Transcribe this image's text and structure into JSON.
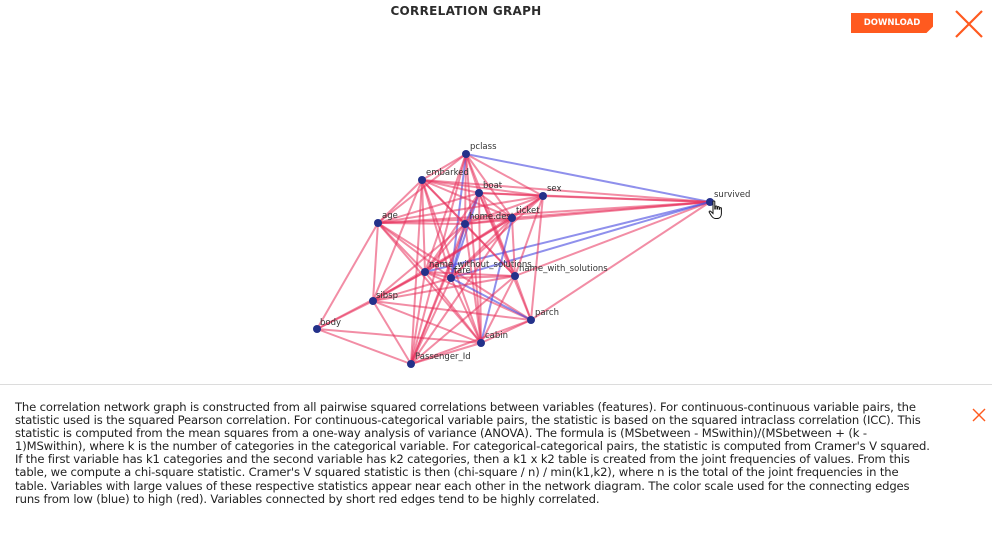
{
  "header": {
    "title": "CORRELATION GRAPH",
    "download_label": "DOWNLOAD"
  },
  "icons": {
    "close": "close-icon",
    "cursor": "hand-pointer-icon"
  },
  "colors": {
    "accent": "#ff5a1f",
    "node": "#24318a",
    "edge_high": "#e8305b",
    "edge_low": "#4a4ce0"
  },
  "graph": {
    "nodes": [
      {
        "id": "pclass",
        "label": "pclass"
      },
      {
        "id": "embarked",
        "label": "embarked"
      },
      {
        "id": "boat",
        "label": "boat"
      },
      {
        "id": "sex",
        "label": "sex"
      },
      {
        "id": "age",
        "label": "age"
      },
      {
        "id": "home_dest",
        "label": "home.dest"
      },
      {
        "id": "ticket",
        "label": "ticket"
      },
      {
        "id": "survived",
        "label": "survived"
      },
      {
        "id": "name_without_solutions",
        "label": "name_without_solutions"
      },
      {
        "id": "fare",
        "label": "fare"
      },
      {
        "id": "name_with_solutions",
        "label": "name_with_solutions"
      },
      {
        "id": "sibsp",
        "label": "sibsp"
      },
      {
        "id": "body",
        "label": "body"
      },
      {
        "id": "parch",
        "label": "parch"
      },
      {
        "id": "cabin",
        "label": "cabin"
      },
      {
        "id": "passenger_id",
        "label": "Passenger_Id"
      }
    ],
    "edges": [
      [
        "survived",
        "pclass",
        "low"
      ],
      [
        "survived",
        "embarked",
        "high"
      ],
      [
        "survived",
        "boat",
        "high"
      ],
      [
        "survived",
        "sex",
        "high"
      ],
      [
        "survived",
        "age",
        "high"
      ],
      [
        "survived",
        "home_dest",
        "high"
      ],
      [
        "survived",
        "ticket",
        "high"
      ],
      [
        "survived",
        "fare",
        "low"
      ],
      [
        "survived",
        "name_with_solutions",
        "high"
      ],
      [
        "survived",
        "parch",
        "high"
      ],
      [
        "survived",
        "name_without_solutions",
        "low"
      ],
      [
        "pclass",
        "embarked",
        "high"
      ],
      [
        "pclass",
        "boat",
        "high"
      ],
      [
        "pclass",
        "sex",
        "high"
      ],
      [
        "pclass",
        "age",
        "high"
      ],
      [
        "pclass",
        "home_dest",
        "high"
      ],
      [
        "pclass",
        "ticket",
        "high"
      ],
      [
        "pclass",
        "fare",
        "low"
      ],
      [
        "pclass",
        "name_without_solutions",
        "high"
      ],
      [
        "pclass",
        "cabin",
        "high"
      ],
      [
        "pclass",
        "passenger_id",
        "high"
      ],
      [
        "pclass",
        "name_with_solutions",
        "high"
      ],
      [
        "embarked",
        "boat",
        "high"
      ],
      [
        "embarked",
        "sex",
        "high"
      ],
      [
        "embarked",
        "age",
        "high"
      ],
      [
        "embarked",
        "home_dest",
        "high"
      ],
      [
        "embarked",
        "ticket",
        "high"
      ],
      [
        "embarked",
        "fare",
        "high"
      ],
      [
        "embarked",
        "name_without_solutions",
        "high"
      ],
      [
        "embarked",
        "name_with_solutions",
        "high"
      ],
      [
        "embarked",
        "sibsp",
        "high"
      ],
      [
        "embarked",
        "cabin",
        "high"
      ],
      [
        "embarked",
        "passenger_id",
        "high"
      ],
      [
        "boat",
        "sex",
        "high"
      ],
      [
        "boat",
        "age",
        "high"
      ],
      [
        "boat",
        "home_dest",
        "low"
      ],
      [
        "boat",
        "ticket",
        "high"
      ],
      [
        "boat",
        "fare",
        "low"
      ],
      [
        "boat",
        "name_without_solutions",
        "high"
      ],
      [
        "boat",
        "name_with_solutions",
        "high"
      ],
      [
        "boat",
        "cabin",
        "high"
      ],
      [
        "boat",
        "passenger_id",
        "high"
      ],
      [
        "boat",
        "parch",
        "high"
      ],
      [
        "sex",
        "age",
        "high"
      ],
      [
        "sex",
        "home_dest",
        "high"
      ],
      [
        "sex",
        "ticket",
        "high"
      ],
      [
        "sex",
        "name_without_solutions",
        "high"
      ],
      [
        "sex",
        "name_with_solutions",
        "high"
      ],
      [
        "sex",
        "parch",
        "high"
      ],
      [
        "sex",
        "fare",
        "high"
      ],
      [
        "age",
        "home_dest",
        "high"
      ],
      [
        "age",
        "ticket",
        "high"
      ],
      [
        "age",
        "sibsp",
        "high"
      ],
      [
        "age",
        "parch",
        "high"
      ],
      [
        "age",
        "body",
        "high"
      ],
      [
        "age",
        "name_without_solutions",
        "high"
      ],
      [
        "age",
        "fare",
        "high"
      ],
      [
        "age",
        "cabin",
        "high"
      ],
      [
        "home_dest",
        "ticket",
        "high"
      ],
      [
        "home_dest",
        "fare",
        "low"
      ],
      [
        "home_dest",
        "name_without_solutions",
        "high"
      ],
      [
        "home_dest",
        "name_with_solutions",
        "high"
      ],
      [
        "home_dest",
        "cabin",
        "high"
      ],
      [
        "home_dest",
        "passenger_id",
        "high"
      ],
      [
        "home_dest",
        "sibsp",
        "high"
      ],
      [
        "ticket",
        "fare",
        "high"
      ],
      [
        "ticket",
        "name_with_solutions",
        "high"
      ],
      [
        "ticket",
        "name_without_solutions",
        "high"
      ],
      [
        "ticket",
        "passenger_id",
        "high"
      ],
      [
        "ticket",
        "cabin",
        "low"
      ],
      [
        "ticket",
        "sibsp",
        "high"
      ],
      [
        "name_without_solutions",
        "fare",
        "high"
      ],
      [
        "name_without_solutions",
        "name_with_solutions",
        "high"
      ],
      [
        "name_without_solutions",
        "sibsp",
        "high"
      ],
      [
        "name_without_solutions",
        "parch",
        "high"
      ],
      [
        "name_without_solutions",
        "cabin",
        "high"
      ],
      [
        "name_without_solutions",
        "passenger_id",
        "high"
      ],
      [
        "name_without_solutions",
        "body",
        "high"
      ],
      [
        "fare",
        "name_with_solutions",
        "high"
      ],
      [
        "fare",
        "sibsp",
        "high"
      ],
      [
        "fare",
        "parch",
        "low"
      ],
      [
        "fare",
        "cabin",
        "high"
      ],
      [
        "fare",
        "passenger_id",
        "high"
      ],
      [
        "name_with_solutions",
        "parch",
        "high"
      ],
      [
        "name_with_solutions",
        "cabin",
        "high"
      ],
      [
        "name_with_solutions",
        "passenger_id",
        "high"
      ],
      [
        "name_with_solutions",
        "sibsp",
        "high"
      ],
      [
        "sibsp",
        "body",
        "high"
      ],
      [
        "sibsp",
        "parch",
        "high"
      ],
      [
        "sibsp",
        "cabin",
        "high"
      ],
      [
        "sibsp",
        "passenger_id",
        "high"
      ],
      [
        "body",
        "passenger_id",
        "high"
      ],
      [
        "body",
        "cabin",
        "high"
      ],
      [
        "parch",
        "cabin",
        "high"
      ],
      [
        "parch",
        "passenger_id",
        "high"
      ],
      [
        "cabin",
        "passenger_id",
        "high"
      ]
    ]
  },
  "description": {
    "text": "The correlation network graph is constructed from all pairwise squared correlations between variables (features). For continuous-continuous variable pairs, the statistic used is the squared Pearson correlation. For continuous-categorical variable pairs, the statistic is based on the squared intraclass correlation (ICC). This statistic is computed from the mean squares from a one-way analysis of variance (ANOVA). The formula is (MSbetween - MSwithin)/(MSbetween + (k - 1)MSwithin), where k is the number of categories in the categorical variable. For categorical-categorical pairs, the statistic is computed from Cramer's V squared. If the first variable has k1 categories and the second variable has k2 categories, then a k1 x k2 table is created from the joint frequencies of values. From this table, we compute a chi-square statistic. Cramer's V squared statistic is then (chi-square / n) / min(k1,k2), where n is the total of the joint frequencies in the table. Variables with large values of these respective statistics appear near each other in the network diagram. The color scale used for the connecting edges runs from low (blue) to high (red). Variables connected by short red edges tend to be highly correlated."
  }
}
